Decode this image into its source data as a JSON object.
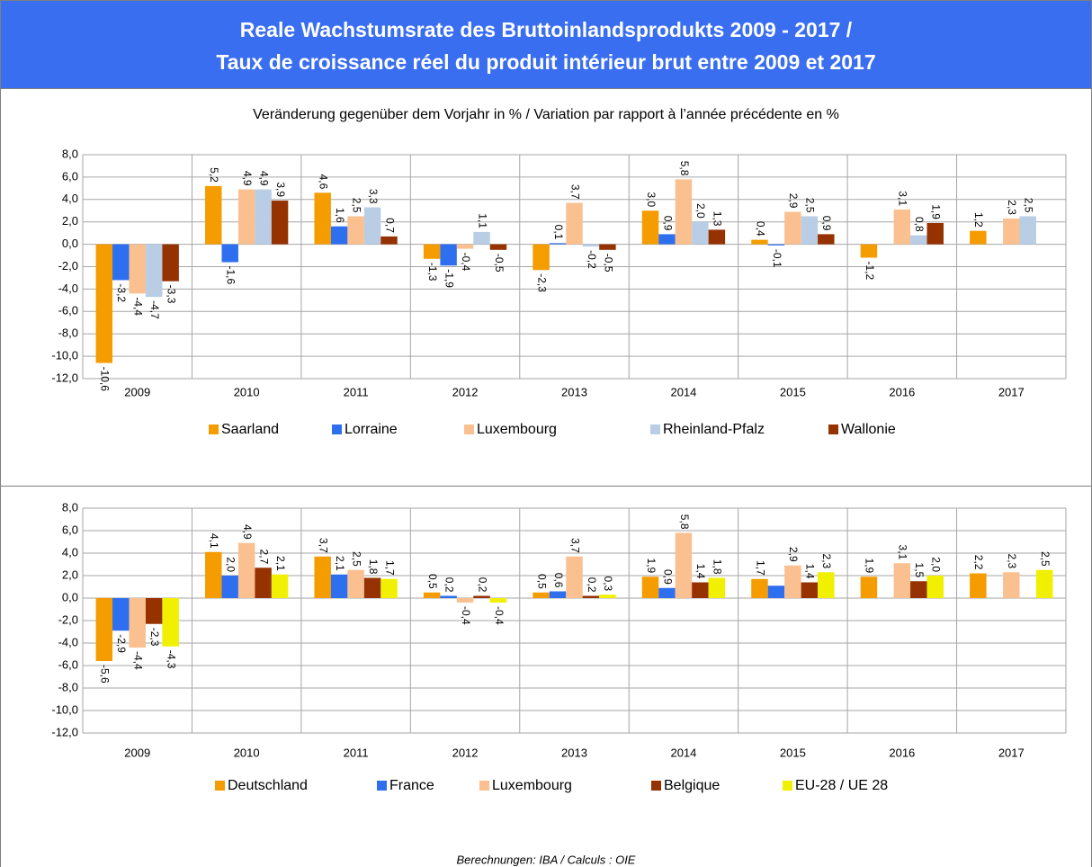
{
  "header": {
    "title_lines": [
      "Reale Wachstumsrate des Bruttoinlandsprodukts 2009 - 2017 /",
      "Taux de croissance réel du produit intérieur brut entre 2009 et 2017"
    ]
  },
  "subtitle": "Veränderung gegenüber dem Vorjahr in % / Variation par rapport à l’année précédente en %",
  "footer": "Berechnungen: IBA / Calculs : OIE",
  "chart_data": [
    {
      "type": "bar",
      "grid": true,
      "legend": "bottom",
      "categories": [
        "2009",
        "2010",
        "2011",
        "2012",
        "2013",
        "2014",
        "2015",
        "2016",
        "2017"
      ],
      "ylim": [
        -12,
        8
      ],
      "yticks": [
        {
          "value": 8,
          "label": "8,0"
        },
        {
          "value": 6,
          "label": "6,0"
        },
        {
          "value": 4,
          "label": "4,0"
        },
        {
          "value": 2,
          "label": "2,0"
        },
        {
          "value": 0,
          "label": "0,0"
        },
        {
          "value": -2,
          "label": "-2,0"
        },
        {
          "value": -4,
          "label": "-4,0"
        },
        {
          "value": -6,
          "label": "-6,0"
        },
        {
          "value": -8,
          "label": "-8,0"
        },
        {
          "value": -10,
          "label": "-10,0"
        },
        {
          "value": -12,
          "label": "-12,0"
        }
      ],
      "series": [
        {
          "name": "Saarland",
          "color": "#f59c00",
          "values": [
            -10.6,
            5.2,
            4.6,
            -1.3,
            -2.3,
            3.0,
            0.4,
            -1.2,
            1.2
          ],
          "value_labels": [
            "-10,6",
            "5,2",
            "4,6",
            "-1,3",
            "-2,3",
            "3,0",
            "0,4",
            "-1,2",
            "1,2"
          ]
        },
        {
          "name": "Lorraine",
          "color": "#2e6ff0",
          "values": [
            -3.2,
            -1.6,
            1.6,
            -1.9,
            0.1,
            0.9,
            -0.1,
            null,
            null
          ],
          "value_labels": [
            "-3,2",
            "-1,6",
            "1,6",
            "-1,9",
            "0,1",
            "0,9",
            "-0,1",
            null,
            null
          ]
        },
        {
          "name": "Luxembourg",
          "color": "#fac090",
          "values": [
            -4.4,
            4.9,
            2.5,
            -0.4,
            3.7,
            5.8,
            2.9,
            3.1,
            2.3
          ],
          "value_labels": [
            "-4,4",
            "4,9",
            "2,5",
            "-0,4",
            "3,7",
            "5,8",
            "2,9",
            "3,1",
            "2,3"
          ]
        },
        {
          "name": "Rheinland-Pfalz",
          "color": "#b9cde5",
          "values": [
            -4.7,
            4.9,
            3.3,
            1.1,
            -0.2,
            2.0,
            2.5,
            0.8,
            2.5
          ],
          "value_labels": [
            "-4,7",
            "4,9",
            "3,3",
            "1,1",
            "-0,2",
            "2,0",
            "2,5",
            "0,8",
            "2,5"
          ]
        },
        {
          "name": "Wallonie",
          "color": "#963200",
          "values": [
            -3.3,
            3.9,
            0.7,
            -0.5,
            -0.5,
            1.3,
            0.9,
            1.9,
            null
          ],
          "value_labels": [
            "-3,3",
            "3,9",
            "0,7",
            "-0,5",
            "-0,5",
            "1,3",
            "0,9",
            "1,9",
            null
          ]
        }
      ]
    },
    {
      "type": "bar",
      "grid": true,
      "legend": "bottom",
      "categories": [
        "2009",
        "2010",
        "2011",
        "2012",
        "2013",
        "2014",
        "2015",
        "2016",
        "2017"
      ],
      "ylim": [
        -12,
        8
      ],
      "yticks": [
        {
          "value": 8,
          "label": "8,0"
        },
        {
          "value": 6,
          "label": "6,0"
        },
        {
          "value": 4,
          "label": "4,0"
        },
        {
          "value": 2,
          "label": "2,0"
        },
        {
          "value": 0,
          "label": "0,0"
        },
        {
          "value": -2,
          "label": "-2,0"
        },
        {
          "value": -4,
          "label": "-4,0"
        },
        {
          "value": -6,
          "label": "-6,0"
        },
        {
          "value": -8,
          "label": "-8,0"
        },
        {
          "value": -10,
          "label": "-10,0"
        },
        {
          "value": -12,
          "label": "-12,0"
        }
      ],
      "series": [
        {
          "name": "Deutschland",
          "color": "#f59c00",
          "values": [
            -5.6,
            4.1,
            3.7,
            0.5,
            0.5,
            1.9,
            1.7,
            1.9,
            2.2
          ],
          "value_labels": [
            "-5,6",
            "4,1",
            "3,7",
            "0,5",
            "0,5",
            "1,9",
            "1,7",
            "1,9",
            "2,2"
          ]
        },
        {
          "name": "France",
          "color": "#2e6ff0",
          "values": [
            -2.9,
            2.0,
            2.1,
            0.2,
            0.6,
            0.9,
            1.1,
            null,
            null
          ],
          "value_labels": [
            "-2,9",
            "2,0",
            "2,1",
            "0,2",
            "0,6",
            "0,9",
            null,
            null,
            null
          ]
        },
        {
          "name": "Luxembourg",
          "color": "#fac090",
          "values": [
            -4.4,
            4.9,
            2.5,
            -0.4,
            3.7,
            5.8,
            2.9,
            3.1,
            2.3
          ],
          "value_labels": [
            "-4,4",
            "4,9",
            "2,5",
            "-0,4",
            "3,7",
            "5,8",
            "2,9",
            "3,1",
            "2,3"
          ]
        },
        {
          "name": "Belgique",
          "color": "#963200",
          "values": [
            -2.3,
            2.7,
            1.8,
            0.2,
            0.2,
            1.4,
            1.4,
            1.5,
            null
          ],
          "value_labels": [
            "-2,3",
            "2,7",
            "1,8",
            "0,2",
            "0,2",
            "1,4",
            "1,4",
            "1,5",
            null
          ]
        },
        {
          "name": "EU-28 / UE 28",
          "color": "#f0f000",
          "values": [
            -4.3,
            2.1,
            1.7,
            -0.4,
            0.3,
            1.8,
            2.3,
            2.0,
            2.5
          ],
          "value_labels": [
            "-4,3",
            "2,1",
            "1,7",
            "-0,4",
            "0,3",
            "1,8",
            "2,3",
            "2,0",
            "2,5"
          ]
        }
      ]
    }
  ]
}
